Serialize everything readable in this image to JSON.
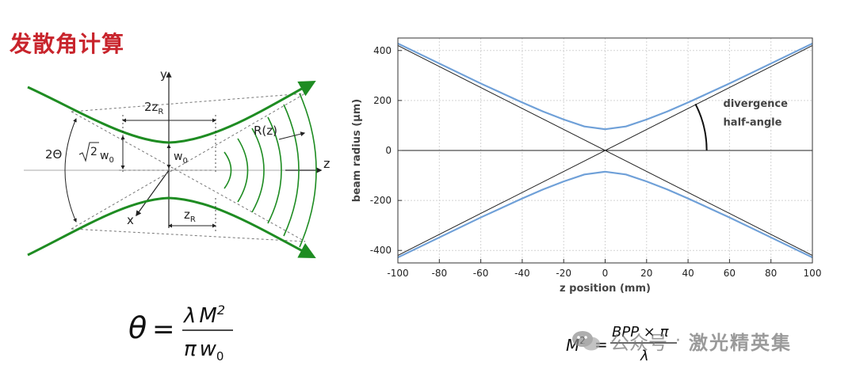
{
  "title": "发散角计算",
  "gaussian_beam": {
    "axis_y": "y",
    "axis_x": "x",
    "axis_z": "z",
    "label_2zr_main": "2z",
    "label_2zr_sub": "R",
    "label_zr_main": "z",
    "label_zr_sub": "R",
    "label_w0_main": "w",
    "label_w0_sub": "0",
    "label_sqrt2": "2",
    "label_sqrt2w0_main": "w",
    "label_sqrt2w0_sub": "0",
    "label_2theta": "2Θ",
    "label_rz": "R(z)"
  },
  "chart_data": {
    "type": "line",
    "xlabel": "z position (mm)",
    "ylabel": "beam radius (μm)",
    "xlim": [
      -100,
      100
    ],
    "ylim": [
      -450,
      450
    ],
    "xticks": [
      -100,
      -80,
      -60,
      -40,
      -20,
      0,
      20,
      40,
      60,
      80,
      100
    ],
    "yticks": [
      -400,
      -200,
      0,
      200,
      400
    ],
    "grid": true,
    "annotation": [
      "divergence",
      "half-angle"
    ],
    "series": [
      {
        "color": "#6fa0d8",
        "x": [
          -100,
          -90,
          -80,
          -70,
          -60,
          -50,
          -40,
          -30,
          -20,
          -10,
          0,
          10,
          20,
          30,
          40,
          50,
          60,
          70,
          80,
          90,
          100
        ],
        "y": [
          428,
          388,
          348,
          308,
          268,
          230,
          192,
          156,
          124,
          96,
          85,
          96,
          124,
          156,
          192,
          230,
          268,
          308,
          348,
          388,
          428
        ]
      },
      {
        "color": "#6fa0d8",
        "x": [
          -100,
          -90,
          -80,
          -70,
          -60,
          -50,
          -40,
          -30,
          -20,
          -10,
          0,
          10,
          20,
          30,
          40,
          50,
          60,
          70,
          80,
          90,
          100
        ],
        "y": [
          -428,
          -388,
          -348,
          -308,
          -268,
          -230,
          -192,
          -156,
          -124,
          -96,
          -85,
          -96,
          -124,
          -156,
          -192,
          -230,
          -268,
          -308,
          -348,
          -388,
          -428
        ]
      },
      {
        "color": "#222222",
        "x": [
          -100,
          100
        ],
        "y": [
          420,
          -420
        ]
      },
      {
        "color": "#222222",
        "x": [
          -100,
          100
        ],
        "y": [
          -420,
          420
        ]
      },
      {
        "color": "#222222",
        "x": [
          -100,
          100
        ],
        "y": [
          0,
          0
        ]
      }
    ]
  },
  "formula_theta": {
    "lhs": "θ",
    "eq": "=",
    "num_lambda": "λ",
    "num_M": "M",
    "num_exp": "2",
    "den_pi": "π",
    "den_w": "w",
    "den_sub": "0"
  },
  "formula_m2": {
    "lhs_M": "M",
    "lhs_exp": "2",
    "eq": "=",
    "numerator": "BPP × π",
    "denominator": "λ"
  },
  "watermark": {
    "source": "公众号",
    "sep": "·",
    "brand": "激光精英集"
  }
}
